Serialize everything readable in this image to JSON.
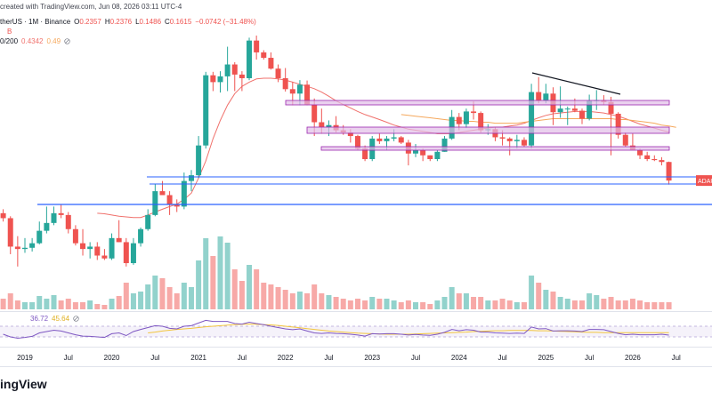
{
  "header": {
    "credit": "created with TradingView.com, Jun 08, 2026 03:11 UTC-4",
    "symbol": "therUS · 1M · Binance",
    "ohlc_labels": [
      "O",
      "H",
      "L",
      "C"
    ],
    "change": "−0.0742 (−31.48%)",
    "volume_label": "B",
    "ma_label": "0/200",
    "price_tag": "ADAU",
    "logo": "ingView"
  },
  "chart_data": {
    "type": "candlestick",
    "log": true,
    "ylim": [
      0.0117,
      6.4
    ],
    "colors": {
      "up": "#26a69a",
      "down": "#ef5350"
    },
    "categories": [
      null,
      null,
      null,
      "2019",
      null,
      null,
      null,
      null,
      null,
      "Jul",
      null,
      null,
      null,
      null,
      null,
      "2020",
      null,
      null,
      null,
      null,
      null,
      "Jul",
      null,
      null,
      null,
      null,
      null,
      "2021",
      null,
      null,
      null,
      null,
      null,
      "Jul",
      null,
      null,
      null,
      null,
      null,
      "2022",
      null,
      null,
      null,
      null,
      null,
      "Jul",
      null,
      null,
      null,
      null,
      null,
      "2023",
      null,
      null,
      null,
      null,
      null,
      "Jul",
      null,
      null,
      null,
      null,
      null,
      "2024",
      null,
      null,
      null,
      null,
      null,
      "Jul",
      null,
      null,
      null,
      null,
      null,
      "2025",
      null,
      null,
      null,
      null,
      null,
      "Jul",
      null,
      null,
      null,
      null,
      null,
      "2026",
      null,
      null,
      null,
      null,
      null,
      "Jul"
    ],
    "candles": [
      [
        0.083,
        0.09,
        0.07,
        0.075
      ],
      [
        0.075,
        0.078,
        0.036,
        0.042
      ],
      [
        0.042,
        0.052,
        0.028,
        0.04
      ],
      [
        0.04,
        0.05,
        0.037,
        0.041
      ],
      [
        0.041,
        0.05,
        0.038,
        0.045
      ],
      [
        0.045,
        0.07,
        0.044,
        0.058
      ],
      [
        0.058,
        0.095,
        0.055,
        0.068
      ],
      [
        0.068,
        0.095,
        0.065,
        0.083
      ],
      [
        0.083,
        0.1,
        0.075,
        0.08
      ],
      [
        0.08,
        0.085,
        0.055,
        0.06
      ],
      [
        0.06,
        0.065,
        0.043,
        0.045
      ],
      [
        0.045,
        0.06,
        0.035,
        0.04
      ],
      [
        0.04,
        0.046,
        0.033,
        0.042
      ],
      [
        0.042,
        0.046,
        0.032,
        0.035
      ],
      [
        0.035,
        0.04,
        0.032,
        0.033
      ],
      [
        0.033,
        0.055,
        0.032,
        0.05
      ],
      [
        0.05,
        0.072,
        0.046,
        0.046
      ],
      [
        0.046,
        0.05,
        0.028,
        0.03
      ],
      [
        0.03,
        0.05,
        0.029,
        0.045
      ],
      [
        0.045,
        0.062,
        0.042,
        0.06
      ],
      [
        0.06,
        0.09,
        0.058,
        0.08
      ],
      [
        0.08,
        0.15,
        0.078,
        0.13
      ],
      [
        0.13,
        0.16,
        0.12,
        0.12
      ],
      [
        0.12,
        0.13,
        0.08,
        0.1
      ],
      [
        0.1,
        0.11,
        0.085,
        0.095
      ],
      [
        0.095,
        0.19,
        0.09,
        0.16
      ],
      [
        0.16,
        0.2,
        0.13,
        0.18
      ],
      [
        0.18,
        0.4,
        0.17,
        0.33
      ],
      [
        0.33,
        1.48,
        0.31,
        1.38
      ],
      [
        1.38,
        1.48,
        1.0,
        1.2
      ],
      [
        1.2,
        1.5,
        0.97,
        1.35
      ],
      [
        1.35,
        2.47,
        1.0,
        1.72
      ],
      [
        1.72,
        1.8,
        1.0,
        1.4
      ],
      [
        1.4,
        1.5,
        1.0,
        1.3
      ],
      [
        1.3,
        2.97,
        1.25,
        2.8
      ],
      [
        2.8,
        3.1,
        1.9,
        2.2
      ],
      [
        2.2,
        2.3,
        1.9,
        1.97
      ],
      [
        1.97,
        2.2,
        1.55,
        1.58
      ],
      [
        1.58,
        1.72,
        1.2,
        1.3
      ],
      [
        1.3,
        1.6,
        0.99,
        1.04
      ],
      [
        1.04,
        1.2,
        0.75,
        0.95
      ],
      [
        0.95,
        1.25,
        0.75,
        1.14
      ],
      [
        1.14,
        1.24,
        0.75,
        0.76
      ],
      [
        0.76,
        0.86,
        0.4,
        0.53
      ],
      [
        0.53,
        0.7,
        0.42,
        0.48
      ],
      [
        0.48,
        0.55,
        0.4,
        0.5
      ],
      [
        0.5,
        0.6,
        0.43,
        0.45
      ],
      [
        0.45,
        0.5,
        0.41,
        0.43
      ],
      [
        0.43,
        0.46,
        0.35,
        0.4
      ],
      [
        0.4,
        0.41,
        0.3,
        0.31
      ],
      [
        0.31,
        0.33,
        0.24,
        0.25
      ],
      [
        0.25,
        0.4,
        0.24,
        0.38
      ],
      [
        0.38,
        0.42,
        0.34,
        0.36
      ],
      [
        0.36,
        0.4,
        0.3,
        0.38
      ],
      [
        0.38,
        0.46,
        0.36,
        0.39
      ],
      [
        0.39,
        0.4,
        0.34,
        0.35
      ],
      [
        0.35,
        0.37,
        0.22,
        0.28
      ],
      [
        0.28,
        0.34,
        0.26,
        0.3
      ],
      [
        0.3,
        0.31,
        0.24,
        0.27
      ],
      [
        0.27,
        0.27,
        0.24,
        0.25
      ],
      [
        0.25,
        0.3,
        0.24,
        0.29
      ],
      [
        0.29,
        0.4,
        0.29,
        0.38
      ],
      [
        0.38,
        0.68,
        0.37,
        0.59
      ],
      [
        0.59,
        0.64,
        0.45,
        0.51
      ],
      [
        0.51,
        0.7,
        0.47,
        0.66
      ],
      [
        0.66,
        0.81,
        0.56,
        0.64
      ],
      [
        0.64,
        0.66,
        0.43,
        0.45
      ],
      [
        0.45,
        0.51,
        0.41,
        0.46
      ],
      [
        0.46,
        0.48,
        0.36,
        0.39
      ],
      [
        0.39,
        0.45,
        0.33,
        0.38
      ],
      [
        0.38,
        0.39,
        0.27,
        0.36
      ],
      [
        0.36,
        0.41,
        0.31,
        0.37
      ],
      [
        0.37,
        0.39,
        0.32,
        0.33
      ],
      [
        0.33,
        1.16,
        0.31,
        0.98
      ],
      [
        0.98,
        1.33,
        0.78,
        0.83
      ],
      [
        0.83,
        1.16,
        0.78,
        0.95
      ],
      [
        0.95,
        1.08,
        0.5,
        0.65
      ],
      [
        0.65,
        1.1,
        0.58,
        0.7
      ],
      [
        0.7,
        0.73,
        0.5,
        0.7
      ],
      [
        0.7,
        0.86,
        0.65,
        0.67
      ],
      [
        0.67,
        0.7,
        0.51,
        0.57
      ],
      [
        0.57,
        0.93,
        0.55,
        0.82
      ],
      [
        0.82,
        1.02,
        0.68,
        0.83
      ],
      [
        0.83,
        0.92,
        0.76,
        0.8
      ],
      [
        0.8,
        0.89,
        0.27,
        0.63
      ],
      [
        0.63,
        0.65,
        0.38,
        0.41
      ],
      [
        0.41,
        0.43,
        0.32,
        0.33
      ],
      [
        0.33,
        0.42,
        0.3,
        0.3
      ],
      [
        0.3,
        0.31,
        0.25,
        0.27
      ],
      [
        0.27,
        0.29,
        0.24,
        0.25
      ],
      [
        0.25,
        0.27,
        0.24,
        0.245
      ],
      [
        0.245,
        0.26,
        0.22,
        0.2357
      ],
      [
        0.2357,
        0.2376,
        0.1486,
        0.1615
      ],
      null
    ],
    "volume_lim": [
      0,
      100
    ],
    "volume": [
      12,
      18,
      10,
      8,
      8,
      15,
      12,
      16,
      10,
      12,
      8,
      8,
      10,
      6,
      5,
      12,
      15,
      30,
      18,
      20,
      28,
      38,
      35,
      25,
      18,
      30,
      25,
      55,
      80,
      60,
      82,
      75,
      45,
      32,
      50,
      45,
      30,
      28,
      25,
      22,
      18,
      20,
      18,
      28,
      18,
      16,
      14,
      12,
      10,
      12,
      10,
      14,
      12,
      12,
      10,
      8,
      10,
      8,
      8,
      6,
      10,
      14,
      25,
      18,
      18,
      14,
      14,
      10,
      10,
      12,
      10,
      8,
      8,
      38,
      30,
      22,
      20,
      14,
      12,
      10,
      10,
      18,
      16,
      12,
      14,
      10,
      10,
      12,
      10,
      8,
      8,
      8,
      8,
      null
    ],
    "ma": [
      {
        "color": "#f0716c",
        "values": [
          null,
          null,
          null,
          null,
          null,
          null,
          null,
          null,
          null,
          null,
          null,
          null,
          null,
          0.083,
          0.082,
          0.08,
          0.078,
          0.077,
          0.076,
          0.076,
          0.08,
          0.085,
          0.09,
          0.095,
          0.1,
          0.11,
          0.125,
          0.17,
          0.24,
          0.38,
          0.55,
          0.75,
          0.95,
          1.1,
          1.2,
          1.28,
          1.3,
          1.3,
          1.28,
          1.25,
          1.2,
          1.15,
          1.1,
          1.05,
          0.98,
          0.9,
          0.82,
          0.76,
          0.71,
          0.66,
          0.62,
          0.59,
          0.56,
          0.53,
          0.5,
          0.48,
          0.46,
          0.45,
          0.44,
          0.43,
          0.42,
          0.42,
          0.42,
          0.43,
          0.44,
          0.45,
          0.46,
          0.47,
          0.48,
          0.48,
          0.49,
          0.5,
          0.52,
          0.55,
          0.58,
          0.61,
          0.63,
          0.64,
          0.65,
          0.66,
          0.66,
          0.66,
          0.65,
          0.64,
          0.62,
          0.6,
          0.57,
          0.54,
          0.51,
          0.49,
          0.47,
          0.45,
          0.4342,
          null
        ]
      },
      {
        "color": "#f5a85c",
        "values": [
          null,
          null,
          null,
          null,
          null,
          null,
          null,
          null,
          null,
          null,
          null,
          null,
          null,
          null,
          null,
          null,
          null,
          null,
          null,
          null,
          null,
          null,
          null,
          null,
          null,
          null,
          null,
          null,
          null,
          null,
          null,
          null,
          null,
          null,
          null,
          null,
          null,
          null,
          null,
          null,
          null,
          null,
          null,
          null,
          null,
          null,
          null,
          null,
          null,
          null,
          null,
          null,
          null,
          null,
          null,
          0.62,
          0.61,
          0.6,
          0.59,
          0.58,
          0.57,
          0.56,
          0.55,
          0.55,
          0.54,
          0.54,
          0.53,
          0.53,
          0.52,
          0.52,
          0.52,
          0.52,
          0.53,
          0.54,
          0.55,
          0.56,
          0.57,
          0.57,
          0.57,
          0.57,
          0.57,
          0.57,
          0.57,
          0.57,
          0.57,
          0.56,
          0.56,
          0.55,
          0.54,
          0.53,
          0.52,
          0.5,
          0.49,
          0.4781,
          null
        ]
      }
    ],
    "rsi": {
      "ylim": [
        0,
        100
      ],
      "bands": [
        30,
        70
      ],
      "color": "#7e57c2",
      "ma_color": "#f2c53d",
      "values": [
        40,
        30,
        25,
        28,
        32,
        45,
        50,
        55,
        52,
        45,
        38,
        33,
        32,
        30,
        28,
        42,
        45,
        35,
        50,
        58,
        65,
        72,
        70,
        62,
        60,
        70,
        72,
        82,
        92,
        88,
        88,
        88,
        80,
        78,
        85,
        80,
        76,
        70,
        65,
        60,
        57,
        60,
        52,
        45,
        43,
        45,
        43,
        42,
        40,
        37,
        33,
        42,
        41,
        42,
        42,
        40,
        37,
        39,
        37,
        36,
        40,
        47,
        58,
        53,
        57,
        55,
        48,
        48,
        45,
        44,
        43,
        44,
        43,
        67,
        60,
        61,
        52,
        53,
        53,
        52,
        50,
        58,
        58,
        57,
        50,
        43,
        38,
        40,
        38,
        38,
        38,
        40,
        36.72,
        null
      ],
      "ma": [
        null,
        null,
        null,
        null,
        null,
        null,
        null,
        null,
        null,
        null,
        null,
        null,
        null,
        null,
        null,
        null,
        null,
        null,
        null,
        null,
        45,
        48,
        52,
        55,
        58,
        60,
        62,
        65,
        68,
        70,
        72,
        74,
        76,
        77,
        78,
        77,
        76,
        75,
        73,
        70,
        67,
        64,
        61,
        58,
        55,
        52,
        50,
        48,
        46,
        44,
        43,
        42,
        41,
        40,
        40,
        40,
        40,
        41,
        42,
        43,
        44,
        45,
        46,
        47,
        48,
        50,
        51,
        52,
        53,
        53,
        54,
        54,
        54,
        54,
        53,
        53,
        52,
        51,
        50,
        49,
        48,
        47,
        47,
        46,
        46,
        46,
        46,
        46,
        46,
        46,
        46,
        46,
        45.64,
        null
      ]
    }
  }
}
